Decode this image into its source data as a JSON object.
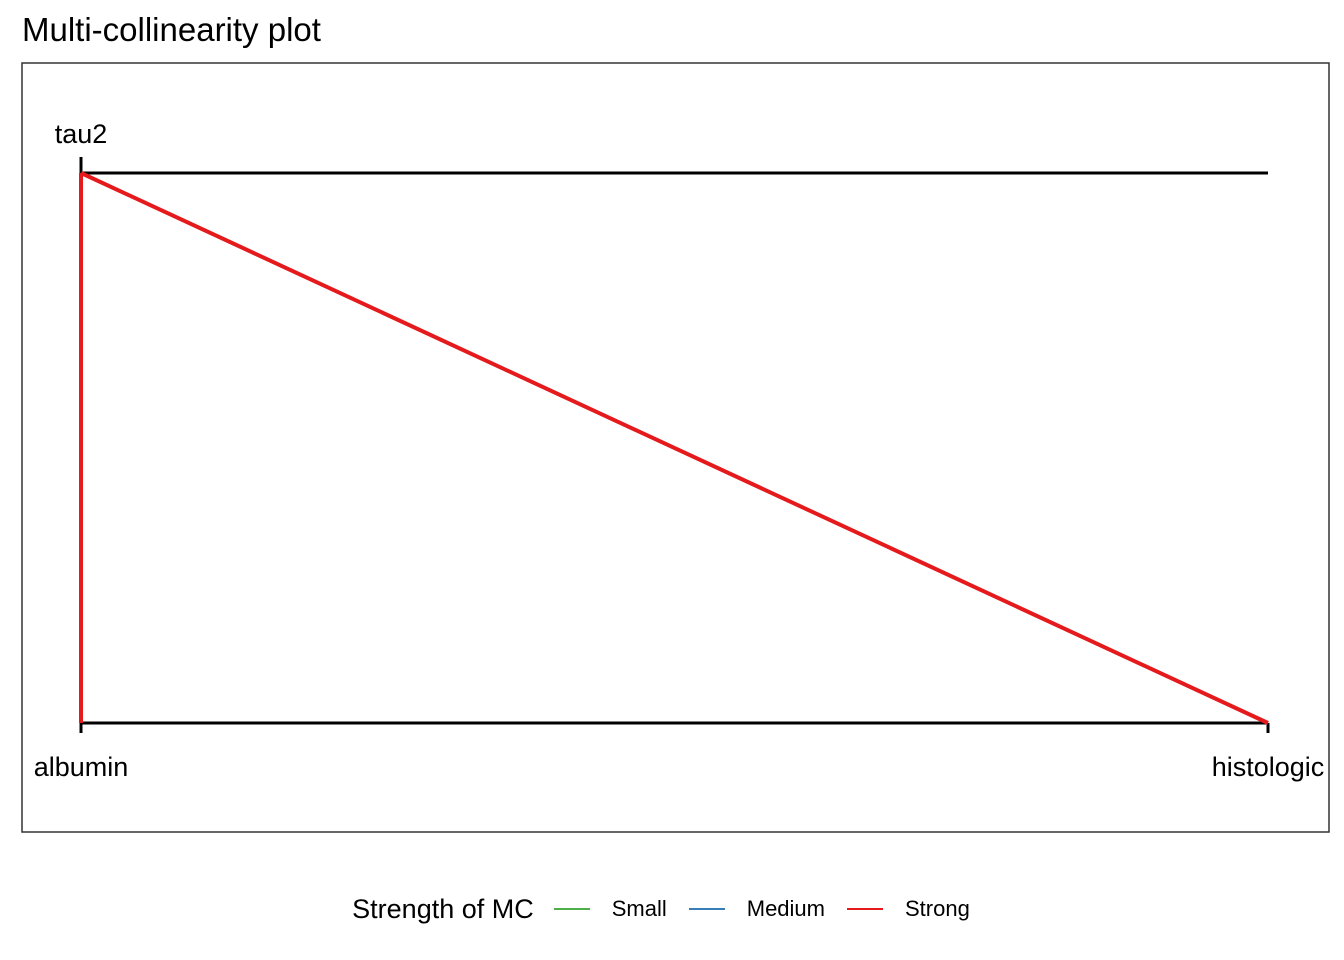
{
  "chart_data": {
    "type": "network",
    "title": "Multi-collinearity plot",
    "axes": [
      {
        "label": "tau2",
        "scale_span": [
          1,
          0
        ]
      },
      {
        "label": "albumin",
        "scale_span": [
          0,
          0
        ]
      },
      {
        "label": "histologic",
        "scale_span": [
          1,
          0
        ]
      }
    ],
    "edges": [
      {
        "from": "tau2",
        "to": "albumin",
        "strength": "Strong"
      },
      {
        "from": "tau2",
        "to": "histologic",
        "strength": "Strong"
      }
    ],
    "legend": {
      "title": "Strength of MC",
      "position": "bottom",
      "entries": [
        {
          "label": "Small",
          "color": "#4daf4a"
        },
        {
          "label": "Medium",
          "color": "#377eb8"
        },
        {
          "label": "Strong",
          "color": "#e41a1c"
        }
      ]
    },
    "colors": {
      "axis_line": "#000000",
      "panel_border": "#333333",
      "background": "#ffffff"
    }
  }
}
